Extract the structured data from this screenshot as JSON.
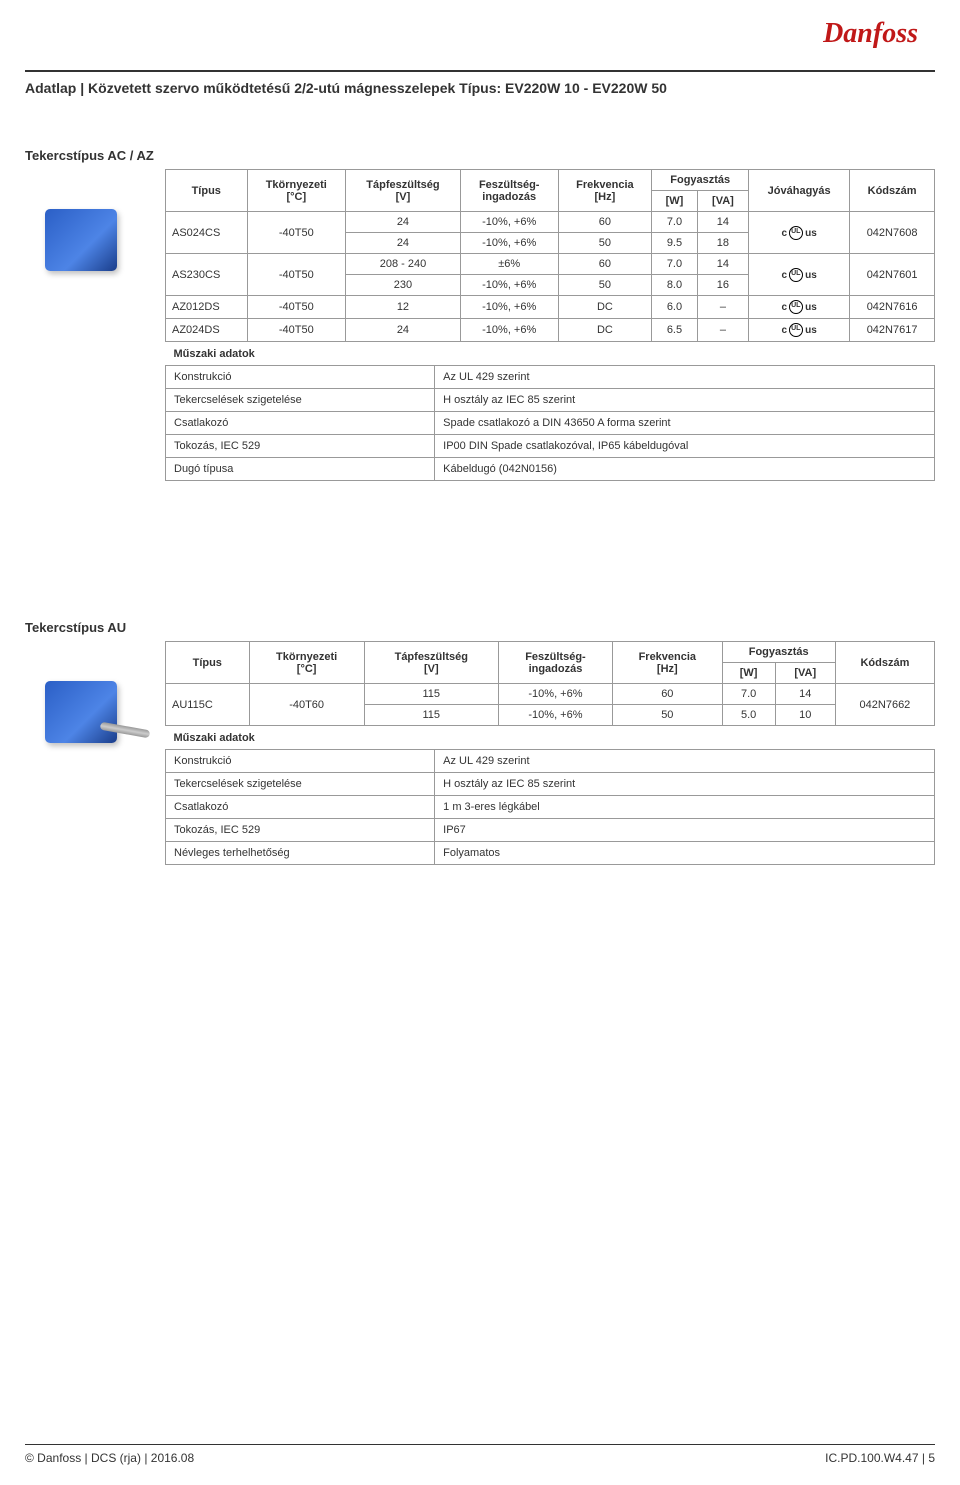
{
  "logo_text": "Danfoss",
  "header": {
    "prefix": "Adatlap |",
    "title": "Közvetett szervo működtetésű 2/2-utú mágnesszelepek Típus:  EV220W 10 - EV220W 50"
  },
  "section_ac": {
    "label": "Tekercstípus AC / AZ",
    "columns": {
      "type": "Típus",
      "ambient": "Tkörnyezeti\n[°C]",
      "supply": "Tápfeszültség\n[V]",
      "variation": "Feszültség-\ningadozás",
      "freq": "Frekvencia\n[Hz]",
      "consumption": "Fogyasztás",
      "w": "[W]",
      "va": "[VA]",
      "approval": "Jóváhagyás",
      "code": "Kódszám"
    },
    "rows": [
      {
        "type": "AS024CS",
        "ambient": "-40T50",
        "supply": "24",
        "var": "-10%, +6%",
        "freq": "60",
        "w": "7.0",
        "va": "14",
        "approval": "ul",
        "code": "042N7608",
        "rowspan_type": 2
      },
      {
        "supply": "24",
        "var": "-10%, +6%",
        "freq": "50",
        "w": "9.5",
        "va": "18"
      },
      {
        "type": "AS230CS",
        "ambient": "-40T50",
        "supply": "208 - 240",
        "var": "±6%",
        "freq": "60",
        "w": "7.0",
        "va": "14",
        "approval": "ul",
        "code": "042N7601",
        "rowspan_type": 2
      },
      {
        "supply": "230",
        "var": "-10%, +6%",
        "freq": "50",
        "w": "8.0",
        "va": "16"
      },
      {
        "type": "AZ012DS",
        "ambient": "-40T50",
        "supply": "12",
        "var": "-10%, +6%",
        "freq": "DC",
        "w": "6.0",
        "va": "–",
        "approval": "ul",
        "code": "042N7616"
      },
      {
        "type": "AZ024DS",
        "ambient": "-40T50",
        "supply": "24",
        "var": "-10%, +6%",
        "freq": "DC",
        "w": "6.5",
        "va": "–",
        "approval": "ul",
        "code": "042N7617"
      }
    ],
    "tech_title": "Műszaki adatok",
    "tech": [
      {
        "k": "Konstrukció",
        "v": "Az UL 429 szerint"
      },
      {
        "k": "Tekercselések szigetelése",
        "v": "H osztály az IEC 85 szerint"
      },
      {
        "k": "Csatlakozó",
        "v": "Spade csatlakozó a DIN 43650 A forma szerint"
      },
      {
        "k": "Tokozás, IEC 529",
        "v": "IP00 DIN Spade csatlakozóval, IP65 kábeldugóval"
      },
      {
        "k": "Dugó típusa",
        "v": "Kábeldugó (042N0156)"
      }
    ]
  },
  "section_au": {
    "label": "Tekercstípus AU",
    "columns": {
      "type": "Típus",
      "ambient": "Tkörnyezeti\n[°C]",
      "supply": "Tápfeszültség\n[V]",
      "variation": "Feszültség-\ningadozás",
      "freq": "Frekvencia\n[Hz]",
      "consumption": "Fogyasztás",
      "w": "[W]",
      "va": "[VA]",
      "code": "Kódszám"
    },
    "rows": [
      {
        "type": "AU115C",
        "ambient": "-40T60",
        "supply": "115",
        "var": "-10%, +6%",
        "freq": "60",
        "w": "7.0",
        "va": "14",
        "code": "042N7662",
        "rowspan_type": 2
      },
      {
        "supply": "115",
        "var": "-10%, +6%",
        "freq": "50",
        "w": "5.0",
        "va": "10"
      }
    ],
    "tech_title": "Műszaki adatok",
    "tech": [
      {
        "k": "Konstrukció",
        "v": "Az UL 429 szerint"
      },
      {
        "k": "Tekercselések szigetelése",
        "v": "H osztály az IEC 85 szerint"
      },
      {
        "k": "Csatlakozó",
        "v": "1 m 3-eres légkábel"
      },
      {
        "k": "Tokozás, IEC 529",
        "v": "IP67"
      },
      {
        "k": "Névleges terhelhetőség",
        "v": "Folyamatos"
      }
    ]
  },
  "footer": {
    "left": "© Danfoss | DCS (rja) | 2016.08",
    "right": "IC.PD.100.W4.47 | 5"
  }
}
